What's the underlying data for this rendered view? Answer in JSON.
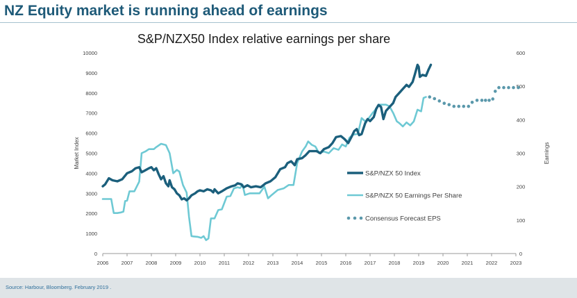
{
  "header": {
    "title": "NZ Equity market is running ahead of earnings"
  },
  "footer": {
    "source": "Source: Harbour, Bloomberg. February 2019 ."
  },
  "colors": {
    "title": "#1e5a78",
    "index_line": "#1b5f7c",
    "eps_line": "#6ec9d4",
    "forecast_dots": "#5a98ab",
    "axis": "#999999",
    "tick_text": "#404040"
  },
  "chart_data": {
    "type": "line",
    "title": "S&P/NZX50 Index relative earnings per share",
    "xlabel": "",
    "ylabel": "Market Index",
    "y2label": "Earnings",
    "xlim": [
      2006,
      2023
    ],
    "ylim": [
      0,
      10000
    ],
    "y2lim": [
      0,
      600
    ],
    "x_ticks": [
      "2006",
      "2007",
      "2008",
      "2009",
      "2010",
      "2011",
      "2012",
      "2013",
      "2014",
      "2015",
      "2016",
      "2017",
      "2018",
      "2019",
      "2020",
      "2021",
      "2022",
      "2023"
    ],
    "y_ticks": [
      "0",
      "1000",
      "2000",
      "3000",
      "4000",
      "5000",
      "6000",
      "7000",
      "8000",
      "9000",
      "10000"
    ],
    "y2_ticks": [
      "0",
      "100",
      "200",
      "300",
      "400",
      "500",
      "600"
    ],
    "grid": false,
    "legend_position": "right",
    "series": [
      {
        "name": "S&P/NZX 50 Index",
        "axis": "left",
        "style": "line-thick",
        "points": [
          [
            2006.0,
            3350
          ],
          [
            2006.1,
            3450
          ],
          [
            2006.25,
            3750
          ],
          [
            2006.4,
            3650
          ],
          [
            2006.6,
            3600
          ],
          [
            2006.8,
            3700
          ],
          [
            2007.0,
            4000
          ],
          [
            2007.2,
            4100
          ],
          [
            2007.35,
            4250
          ],
          [
            2007.5,
            4300
          ],
          [
            2007.6,
            4050
          ],
          [
            2007.75,
            4150
          ],
          [
            2007.9,
            4250
          ],
          [
            2008.0,
            4300
          ],
          [
            2008.1,
            4150
          ],
          [
            2008.2,
            4250
          ],
          [
            2008.3,
            3950
          ],
          [
            2008.4,
            3700
          ],
          [
            2008.5,
            3850
          ],
          [
            2008.6,
            3500
          ],
          [
            2008.7,
            3350
          ],
          [
            2008.75,
            3650
          ],
          [
            2008.85,
            3300
          ],
          [
            2008.95,
            3200
          ],
          [
            2009.05,
            3000
          ],
          [
            2009.15,
            2900
          ],
          [
            2009.25,
            2700
          ],
          [
            2009.35,
            2750
          ],
          [
            2009.45,
            2650
          ],
          [
            2009.55,
            2750
          ],
          [
            2009.65,
            2900
          ],
          [
            2009.8,
            3000
          ],
          [
            2009.9,
            3100
          ],
          [
            2010.0,
            3150
          ],
          [
            2010.15,
            3100
          ],
          [
            2010.3,
            3200
          ],
          [
            2010.45,
            3150
          ],
          [
            2010.55,
            3050
          ],
          [
            2010.6,
            3200
          ],
          [
            2010.75,
            3000
          ],
          [
            2010.9,
            3100
          ],
          [
            2011.1,
            3250
          ],
          [
            2011.3,
            3350
          ],
          [
            2011.45,
            3400
          ],
          [
            2011.55,
            3500
          ],
          [
            2011.7,
            3450
          ],
          [
            2011.8,
            3300
          ],
          [
            2011.95,
            3400
          ],
          [
            2012.1,
            3300
          ],
          [
            2012.3,
            3350
          ],
          [
            2012.5,
            3300
          ],
          [
            2012.7,
            3500
          ],
          [
            2012.9,
            3600
          ],
          [
            2013.1,
            3800
          ],
          [
            2013.3,
            4200
          ],
          [
            2013.5,
            4300
          ],
          [
            2013.6,
            4500
          ],
          [
            2013.75,
            4600
          ],
          [
            2013.9,
            4400
          ],
          [
            2014.0,
            4700
          ],
          [
            2014.2,
            4750
          ],
          [
            2014.35,
            4900
          ],
          [
            2014.5,
            5100
          ],
          [
            2014.65,
            5100
          ],
          [
            2014.8,
            5100
          ],
          [
            2014.95,
            5000
          ],
          [
            2015.1,
            5200
          ],
          [
            2015.3,
            5300
          ],
          [
            2015.45,
            5500
          ],
          [
            2015.6,
            5800
          ],
          [
            2015.8,
            5850
          ],
          [
            2015.95,
            5700
          ],
          [
            2016.1,
            5500
          ],
          [
            2016.25,
            5850
          ],
          [
            2016.35,
            6100
          ],
          [
            2016.45,
            6200
          ],
          [
            2016.55,
            5900
          ],
          [
            2016.65,
            5950
          ],
          [
            2016.8,
            6500
          ],
          [
            2016.9,
            6700
          ],
          [
            2017.0,
            6600
          ],
          [
            2017.15,
            6800
          ],
          [
            2017.25,
            7200
          ],
          [
            2017.35,
            7400
          ],
          [
            2017.45,
            7300
          ],
          [
            2017.55,
            6700
          ],
          [
            2017.65,
            7100
          ],
          [
            2017.8,
            7300
          ],
          [
            2017.95,
            7500
          ],
          [
            2018.05,
            7800
          ],
          [
            2018.2,
            8000
          ],
          [
            2018.35,
            8200
          ],
          [
            2018.5,
            8400
          ],
          [
            2018.6,
            8300
          ],
          [
            2018.75,
            8550
          ],
          [
            2018.85,
            8950
          ],
          [
            2018.95,
            9400
          ],
          [
            2019.0,
            9300
          ],
          [
            2019.05,
            8800
          ],
          [
            2019.15,
            8900
          ],
          [
            2019.3,
            8850
          ],
          [
            2019.4,
            9150
          ],
          [
            2019.5,
            9400
          ]
        ]
      },
      {
        "name": "S&P/NZX 50 Earnings Per Share",
        "axis": "right",
        "style": "line",
        "points": [
          [
            2006.0,
            163
          ],
          [
            2006.35,
            163
          ],
          [
            2006.45,
            121
          ],
          [
            2006.6,
            121
          ],
          [
            2006.75,
            123
          ],
          [
            2006.85,
            125
          ],
          [
            2006.92,
            157
          ],
          [
            2007.0,
            158
          ],
          [
            2007.1,
            186
          ],
          [
            2007.3,
            186
          ],
          [
            2007.5,
            215
          ],
          [
            2007.6,
            300
          ],
          [
            2007.75,
            305
          ],
          [
            2007.9,
            312
          ],
          [
            2008.1,
            312
          ],
          [
            2008.2,
            318
          ],
          [
            2008.4,
            328
          ],
          [
            2008.6,
            324
          ],
          [
            2008.75,
            300
          ],
          [
            2008.9,
            240
          ],
          [
            2009.05,
            250
          ],
          [
            2009.15,
            245
          ],
          [
            2009.3,
            205
          ],
          [
            2009.45,
            182
          ],
          [
            2009.55,
            110
          ],
          [
            2009.65,
            52
          ],
          [
            2009.75,
            51
          ],
          [
            2009.9,
            50
          ],
          [
            2010.05,
            47
          ],
          [
            2010.15,
            52
          ],
          [
            2010.25,
            40
          ],
          [
            2010.35,
            45
          ],
          [
            2010.45,
            105
          ],
          [
            2010.6,
            105
          ],
          [
            2010.75,
            130
          ],
          [
            2010.9,
            132
          ],
          [
            2011.1,
            170
          ],
          [
            2011.25,
            172
          ],
          [
            2011.4,
            195
          ],
          [
            2011.55,
            198
          ],
          [
            2011.65,
            196
          ],
          [
            2011.75,
            206
          ],
          [
            2011.85,
            175
          ],
          [
            2012.05,
            180
          ],
          [
            2012.25,
            180
          ],
          [
            2012.45,
            180
          ],
          [
            2012.65,
            200
          ],
          [
            2012.8,
            165
          ],
          [
            2012.95,
            175
          ],
          [
            2013.2,
            190
          ],
          [
            2013.45,
            195
          ],
          [
            2013.65,
            205
          ],
          [
            2013.85,
            205
          ],
          [
            2014.0,
            270
          ],
          [
            2014.2,
            305
          ],
          [
            2014.35,
            320
          ],
          [
            2014.45,
            335
          ],
          [
            2014.6,
            325
          ],
          [
            2014.75,
            320
          ],
          [
            2014.9,
            300
          ],
          [
            2015.1,
            305
          ],
          [
            2015.3,
            300
          ],
          [
            2015.5,
            315
          ],
          [
            2015.7,
            310
          ],
          [
            2015.85,
            326
          ],
          [
            2016.0,
            320
          ],
          [
            2016.15,
            346
          ],
          [
            2016.3,
            355
          ],
          [
            2016.5,
            358
          ],
          [
            2016.65,
            405
          ],
          [
            2016.8,
            395
          ],
          [
            2016.95,
            405
          ],
          [
            2017.1,
            420
          ],
          [
            2017.2,
            428
          ],
          [
            2017.35,
            445
          ],
          [
            2017.5,
            445
          ],
          [
            2017.65,
            445
          ],
          [
            2017.8,
            440
          ],
          [
            2017.95,
            420
          ],
          [
            2018.1,
            395
          ],
          [
            2018.2,
            390
          ],
          [
            2018.35,
            380
          ],
          [
            2018.5,
            392
          ],
          [
            2018.65,
            383
          ],
          [
            2018.8,
            395
          ],
          [
            2018.95,
            430
          ],
          [
            2019.1,
            425
          ],
          [
            2019.2,
            465
          ],
          [
            2019.3,
            468
          ]
        ]
      },
      {
        "name": "Consensus Forecast EPS",
        "axis": "right",
        "style": "dotted",
        "points": [
          [
            2019.45,
            468
          ],
          [
            2019.65,
            463
          ],
          [
            2019.85,
            456
          ],
          [
            2020.05,
            449
          ],
          [
            2020.25,
            445
          ],
          [
            2020.45,
            440
          ],
          [
            2020.65,
            440
          ],
          [
            2020.85,
            440
          ],
          [
            2021.05,
            440
          ],
          [
            2021.2,
            452
          ],
          [
            2021.4,
            458
          ],
          [
            2021.6,
            458
          ],
          [
            2021.75,
            458
          ],
          [
            2021.9,
            458
          ],
          [
            2022.05,
            462
          ],
          [
            2022.15,
            485
          ],
          [
            2022.3,
            496
          ],
          [
            2022.5,
            496
          ],
          [
            2022.7,
            496
          ],
          [
            2022.9,
            496
          ],
          [
            2023.1,
            496
          ]
        ]
      }
    ]
  }
}
